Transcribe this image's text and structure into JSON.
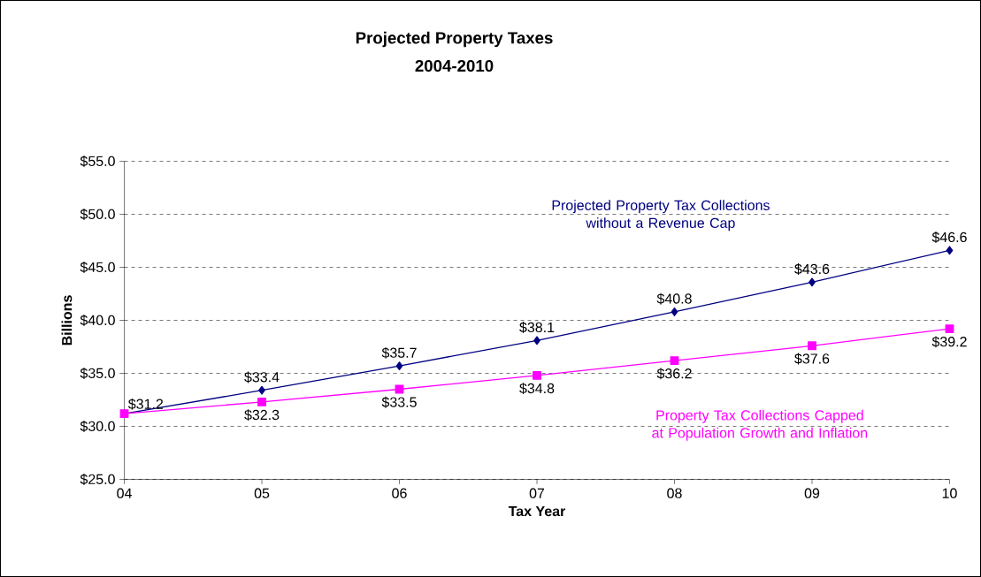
{
  "chart_data": {
    "type": "line",
    "title": "Projected Property Taxes",
    "subtitle": "2004-2010",
    "xlabel": "Tax Year",
    "ylabel": "Billions",
    "categories": [
      "04",
      "05",
      "06",
      "07",
      "08",
      "09",
      "10"
    ],
    "series": [
      {
        "name": "Projected Property Tax Collections without a Revenue Cap",
        "color": "#000080",
        "marker": "diamond",
        "values": [
          31.2,
          33.4,
          35.7,
          38.1,
          40.8,
          43.6,
          46.6
        ],
        "value_labels": [
          "$31.2",
          "$33.4",
          "$35.7",
          "$38.1",
          "$40.8",
          "$43.6",
          "$46.6"
        ]
      },
      {
        "name": "Property Tax Collections Capped at Population Growth and Inflation",
        "color": "#ff00ff",
        "marker": "square",
        "values": [
          31.2,
          32.3,
          33.5,
          34.8,
          36.2,
          37.6,
          39.2
        ],
        "value_labels": [
          null,
          "$32.3",
          "$33.5",
          "$34.8",
          "$36.2",
          "$37.6",
          "$39.2"
        ]
      }
    ],
    "ylim": [
      25,
      55
    ],
    "yticks": [
      {
        "value": 25,
        "label": "$25.0"
      },
      {
        "value": 30,
        "label": "$30.0"
      },
      {
        "value": 35,
        "label": "$35.0"
      },
      {
        "value": 40,
        "label": "$40.0"
      },
      {
        "value": 45,
        "label": "$45.0"
      },
      {
        "value": 50,
        "label": "$50.0"
      },
      {
        "value": 55,
        "label": "$55.0"
      }
    ],
    "grid": "y",
    "line_style": "solid"
  }
}
